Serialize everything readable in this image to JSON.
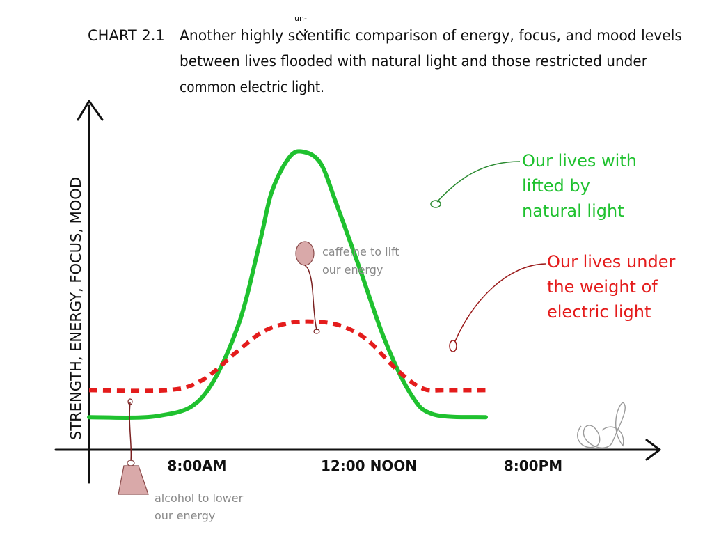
{
  "chart_data": {
    "type": "line",
    "title_prefix": "CHART 2.1",
    "title_lines": [
      "Another highly scientific comparison of energy, focus, and mood levels",
      "between lives flooded with natural light and those restricted under",
      "common electric light."
    ],
    "title_insert": "un-",
    "ylabel": "STRENGTH, ENERGY, FOCUS, MOOD",
    "x_ticks": [
      "8:00AM",
      "12:00 NOON",
      "8:00PM"
    ],
    "series": [
      {
        "name_lines": [
          "Our lives with",
          "lifted by",
          "natural light"
        ],
        "color": "#1fc12f",
        "style": "solid",
        "points": [
          [
            0,
            7
          ],
          [
            4,
            7.5
          ],
          [
            6.5,
            14
          ],
          [
            8.5,
            38
          ],
          [
            9.8,
            68
          ],
          [
            10.5,
            86
          ],
          [
            11.5,
            98
          ],
          [
            12.3,
            100
          ],
          [
            13.3,
            96
          ],
          [
            14.2,
            82
          ],
          [
            15.5,
            60
          ],
          [
            17,
            34
          ],
          [
            18.5,
            15
          ],
          [
            19.8,
            8
          ],
          [
            22.8,
            7
          ]
        ]
      },
      {
        "name_lines": [
          "Our lives under",
          "the weight of",
          "electric light"
        ],
        "color": "#e41c1c",
        "style": "dashed",
        "points": [
          [
            0,
            16.5
          ],
          [
            4.5,
            16.5
          ],
          [
            6.5,
            20
          ],
          [
            8.5,
            30
          ],
          [
            10,
            37
          ],
          [
            11.5,
            40
          ],
          [
            13,
            40.5
          ],
          [
            14.5,
            39
          ],
          [
            16,
            34
          ],
          [
            17.8,
            23
          ],
          [
            19.2,
            17
          ],
          [
            20.5,
            16.5
          ],
          [
            22.8,
            16.5
          ]
        ]
      }
    ],
    "annotations": [
      {
        "text_lines": [
          "caffeine to lift",
          "our energy"
        ],
        "icon": "balloon-icon",
        "color": "#c98c8c"
      },
      {
        "text_lines": [
          "alcohol to lower",
          "our energy"
        ],
        "icon": "weight-icon",
        "color": "#c98c8c"
      }
    ],
    "grid": false
  }
}
